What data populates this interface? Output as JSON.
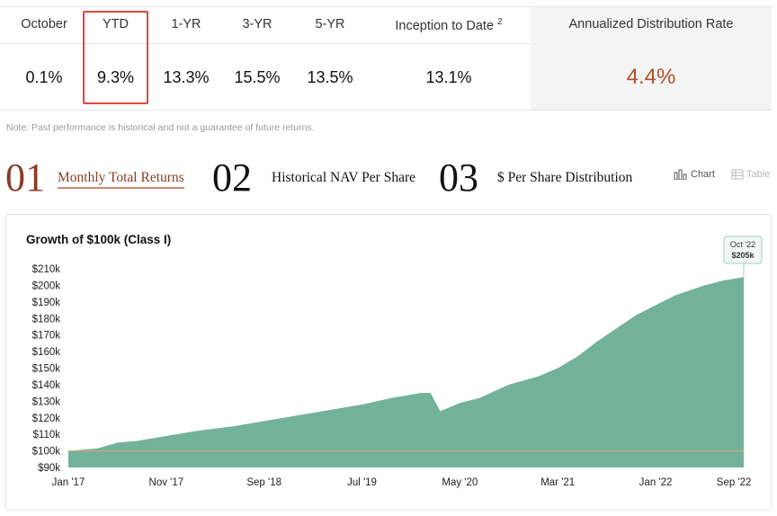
{
  "performance": {
    "columns": [
      {
        "label": "October",
        "value": "0.1%"
      },
      {
        "label": "YTD",
        "value": "9.3%"
      },
      {
        "label": "1-YR",
        "value": "13.3%"
      },
      {
        "label": "3-YR",
        "value": "15.5%"
      },
      {
        "label": "5-YR",
        "value": "13.5%"
      },
      {
        "label": "Inception to Date",
        "sup": "2",
        "value": "13.1%"
      }
    ],
    "distribution": {
      "label": "Annualized Distribution Rate",
      "value": "4.4%"
    },
    "note": "Note: Past performance is historical and not a guarantee of future returns."
  },
  "tabs": [
    {
      "num": "01",
      "label": "Monthly Total Returns"
    },
    {
      "num": "02",
      "label": "Historical NAV Per Share"
    },
    {
      "num": "03",
      "label": "$ Per Share Distribution"
    }
  ],
  "view_toggle": {
    "chart_label": "Chart",
    "table_label": "Table"
  },
  "colors": {
    "area_fill": "#72b29a",
    "baseline": "#d9a36e",
    "accent": "#8a3d26",
    "highlight_border": "#e0473e"
  },
  "chart_data": {
    "type": "area",
    "title": "Growth of $100k (Class I)",
    "y_ticks": [
      "$90k",
      "$100k",
      "$110k",
      "$120k",
      "$130k",
      "$140k",
      "$150k",
      "$160k",
      "$170k",
      "$180k",
      "$190k",
      "$200k",
      "$210k"
    ],
    "x_ticks": [
      "Jan '17",
      "Nov '17",
      "Sep '18",
      "Jul '19",
      "May '20",
      "Mar '21",
      "Jan '22",
      "Sep '22"
    ],
    "ylim": [
      90,
      215
    ],
    "baseline": 100,
    "tooltip": {
      "date": "Oct '22",
      "value": "$205k"
    },
    "series": [
      {
        "x": [
          "2017-01",
          "2017-04",
          "2017-06",
          "2017-08",
          "2017-11",
          "2018-02",
          "2018-06",
          "2018-09",
          "2018-12",
          "2019-03",
          "2019-07",
          "2019-10",
          "2020-01",
          "2020-02",
          "2020-03",
          "2020-05",
          "2020-07",
          "2020-10",
          "2021-01",
          "2021-03",
          "2021-05",
          "2021-07",
          "2021-09",
          "2021-11",
          "2022-01",
          "2022-03",
          "2022-06",
          "2022-08",
          "2022-10"
        ],
        "values": [
          100,
          101.5,
          105,
          106,
          109,
          112,
          115,
          118,
          121,
          124,
          128,
          132,
          135,
          135,
          124,
          129,
          132,
          140,
          145,
          150,
          157,
          166,
          174,
          182,
          188,
          194,
          200,
          203,
          205
        ]
      }
    ]
  }
}
